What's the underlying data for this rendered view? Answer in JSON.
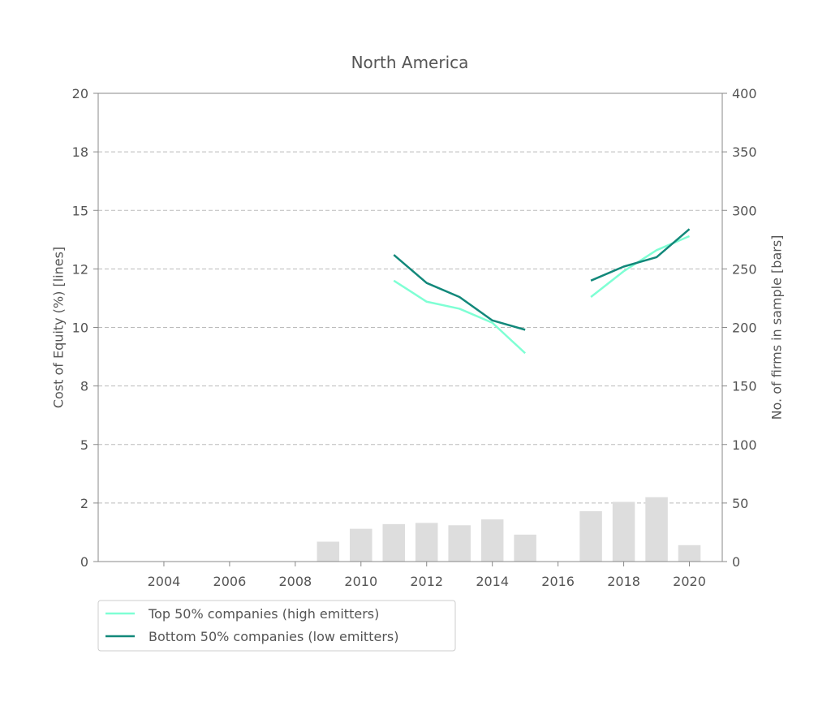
{
  "chart_data": {
    "type": "line",
    "title": "North America",
    "ylabel_left": "Cost of Equity (%) [lines]",
    "ylabel_right": "No. of firms in sample [bars]",
    "xlim": [
      2002,
      2021
    ],
    "x_ticks": [
      2004,
      2006,
      2008,
      2010,
      2012,
      2014,
      2016,
      2018,
      2020
    ],
    "ylim_left": [
      0,
      20
    ],
    "y_ticks_left": [
      0,
      2.5,
      5,
      7.5,
      10,
      12.5,
      15,
      17.5,
      20
    ],
    "y_tick_labels_left": [
      "0",
      "2",
      "5",
      "8",
      "10",
      "12",
      "15",
      "18",
      "20"
    ],
    "ylim_right": [
      0,
      400
    ],
    "y_ticks_right": [
      0,
      50,
      100,
      150,
      200,
      250,
      300,
      350,
      400
    ],
    "grid": "horizontal dashed",
    "legend_position": "below-left",
    "bars": {
      "color": "#dddddd",
      "x": [
        2009,
        2010,
        2011,
        2012,
        2013,
        2014,
        2015,
        2017,
        2018,
        2019,
        2020
      ],
      "values": [
        17,
        28,
        32,
        33,
        31,
        36,
        23,
        43,
        51,
        55,
        14
      ]
    },
    "series": [
      {
        "name": "Top 50% companies (high emitters)",
        "color": "#7fffd4",
        "segments": [
          {
            "x": [
              2011,
              2012,
              2013,
              2014,
              2015
            ],
            "y": [
              12.0,
              11.1,
              10.8,
              10.2,
              8.9
            ]
          },
          {
            "x": [
              2017,
              2018,
              2019,
              2020
            ],
            "y": [
              11.3,
              12.4,
              13.3,
              13.9
            ]
          }
        ]
      },
      {
        "name": "Bottom 50% companies (low emitters)",
        "color": "#12887a",
        "segments": [
          {
            "x": [
              2011,
              2012,
              2013,
              2014,
              2015
            ],
            "y": [
              13.1,
              11.9,
              11.3,
              10.3,
              9.9
            ]
          },
          {
            "x": [
              2017,
              2018,
              2019,
              2020
            ],
            "y": [
              12.0,
              12.6,
              13.0,
              14.2
            ]
          }
        ]
      }
    ]
  }
}
